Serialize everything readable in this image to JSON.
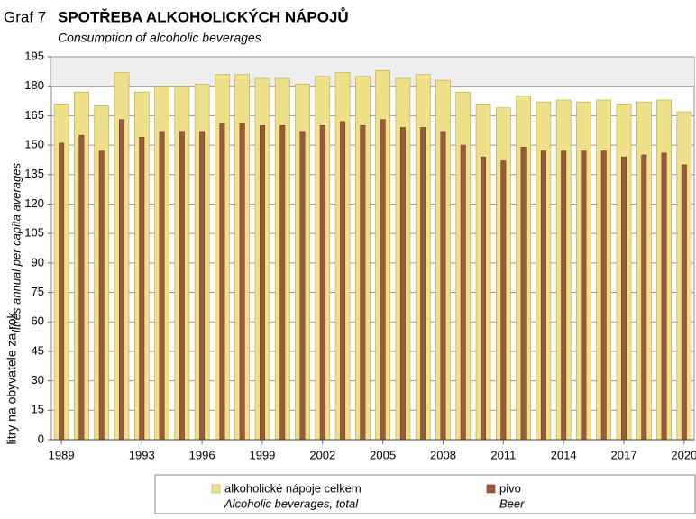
{
  "chart_data": {
    "type": "bar",
    "title_prefix": "Graf 7",
    "title": "SPOTŘEBA ALKOHOLICKÝCH NÁPOJŮ",
    "subtitle": "Consumption of alcoholic beverages",
    "y_axis_label": "litry na obyvatele za rok",
    "y_axis_label_en": "litres annual per capita averages",
    "categories": [
      "1989",
      null,
      null,
      null,
      "1993",
      null,
      null,
      "1996",
      null,
      null,
      "1999",
      null,
      null,
      "2002",
      null,
      null,
      "2005",
      null,
      null,
      "2008",
      null,
      null,
      "2011",
      null,
      null,
      "2014",
      null,
      null,
      "2017",
      null,
      null,
      "2020"
    ],
    "series": [
      {
        "name": "alkoholické nápoje celkem",
        "name_en": "Alcoholic beverages, total",
        "color": "#efe08a",
        "values": [
          171,
          177,
          170,
          187,
          177,
          180,
          180,
          181,
          186,
          186,
          184,
          184,
          181,
          185,
          187,
          185,
          188,
          184,
          186,
          183,
          177,
          171,
          169,
          175,
          172,
          173,
          172,
          173,
          171,
          172,
          173,
          167
        ]
      },
      {
        "name": "pivo",
        "name_en": "Beer",
        "color": "#9c5a3c",
        "values": [
          151,
          155,
          147,
          163,
          154,
          157,
          157,
          157,
          161,
          161,
          160,
          160,
          157,
          160,
          162,
          160,
          163,
          159,
          159,
          157,
          150,
          144,
          142,
          149,
          147,
          147,
          147,
          147,
          144,
          145,
          146,
          140
        ]
      }
    ],
    "ylim": [
      0,
      195
    ],
    "yticks": [
      0,
      15,
      30,
      45,
      60,
      75,
      90,
      105,
      120,
      135,
      150,
      165,
      180,
      195
    ],
    "grid": true
  }
}
